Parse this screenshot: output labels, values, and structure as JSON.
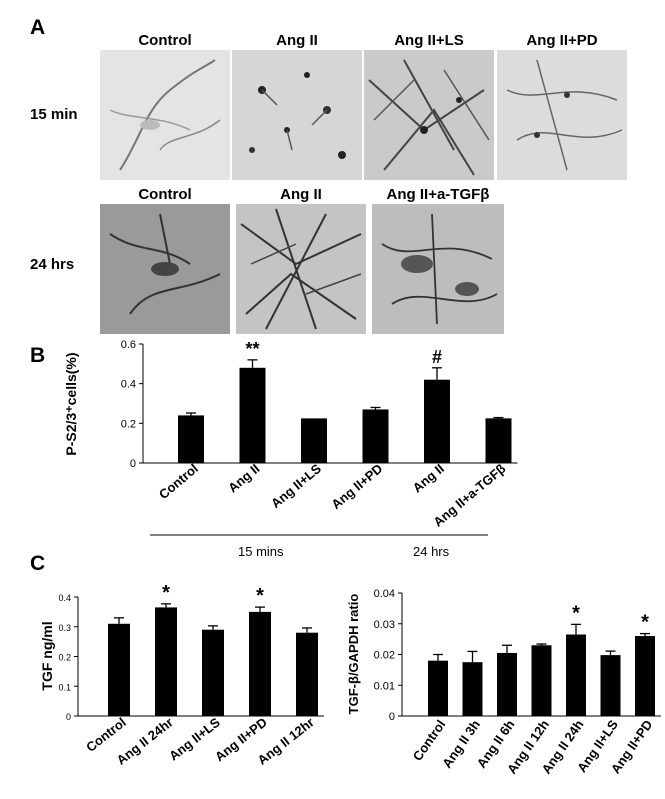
{
  "figure": {
    "panel_a": {
      "letter": "A",
      "row1": {
        "time_label": "15 min",
        "headers": [
          "Control",
          "Ang II",
          "Ang II+LS",
          "Ang II+PD"
        ]
      },
      "row2": {
        "time_label": "24 hrs",
        "headers": [
          "Control",
          "Ang II",
          "Ang II+a-TGFβ"
        ]
      }
    },
    "panel_b": {
      "letter": "B",
      "group_labels": [
        "15 mins",
        "24 hrs"
      ]
    },
    "panel_c": {
      "letter": "C"
    }
  },
  "chart_data": [
    {
      "id": "B",
      "type": "bar",
      "ylabel": "P-S2/3⁺cells(%)",
      "categories": [
        "Control",
        "Ang II",
        "Ang II+LS",
        "Ang II+PD",
        "Ang II",
        "Ang II+a-TGFβ"
      ],
      "values": [
        0.24,
        0.48,
        0.225,
        0.27,
        0.42,
        0.225
      ],
      "errors": [
        0.012,
        0.04,
        0.0,
        0.01,
        0.06,
        0.004
      ],
      "annotations": [
        "",
        "**",
        "",
        "",
        "#",
        ""
      ],
      "ylim": [
        0,
        0.6
      ],
      "yticks": [
        0,
        0.2,
        0.4,
        0.6
      ],
      "ytick_labels": [
        "0",
        "0.2",
        "0.4",
        "0.6"
      ],
      "grid": false,
      "bar_color": "#000000"
    },
    {
      "id": "C-left",
      "type": "bar",
      "ylabel": "TGF ng/ml",
      "categories": [
        "Control",
        "Ang II 24hr",
        "Ang II+LS",
        "Ang II+PD",
        "Ang II 12hr"
      ],
      "values": [
        0.31,
        0.365,
        0.29,
        0.35,
        0.28
      ],
      "errors": [
        0.02,
        0.012,
        0.013,
        0.016,
        0.016
      ],
      "annotations": [
        "",
        "*",
        "",
        "*",
        ""
      ],
      "ylim": [
        0,
        0.4
      ],
      "yticks": [
        0,
        0.1,
        0.2,
        0.3,
        0.4
      ],
      "ytick_labels": [
        "0",
        "0.1",
        "0.2",
        "0.3",
        "0.4"
      ],
      "grid": false,
      "bar_color": "#000000"
    },
    {
      "id": "C-right",
      "type": "bar",
      "ylabel": "TGF-β/GAPDH ratio",
      "categories": [
        "Control",
        "Ang II 3h",
        "Ang II 6h",
        "Ang II 12h",
        "Ang II 24h",
        "Ang II+LS",
        "Ang II+PD"
      ],
      "values": [
        0.018,
        0.0175,
        0.0205,
        0.023,
        0.0265,
        0.0198,
        0.026
      ],
      "errors": [
        0.002,
        0.0035,
        0.0025,
        0.0004,
        0.0033,
        0.0013,
        0.0008
      ],
      "annotations": [
        "",
        "",
        "",
        "",
        "*",
        "",
        "*"
      ],
      "ylim": [
        0,
        0.04
      ],
      "yticks": [
        0,
        0.01,
        0.02,
        0.03,
        0.04
      ],
      "ytick_labels": [
        "0",
        "0.01",
        "0.02",
        "0.03",
        "0.04"
      ],
      "grid": false,
      "bar_color": "#000000"
    }
  ]
}
